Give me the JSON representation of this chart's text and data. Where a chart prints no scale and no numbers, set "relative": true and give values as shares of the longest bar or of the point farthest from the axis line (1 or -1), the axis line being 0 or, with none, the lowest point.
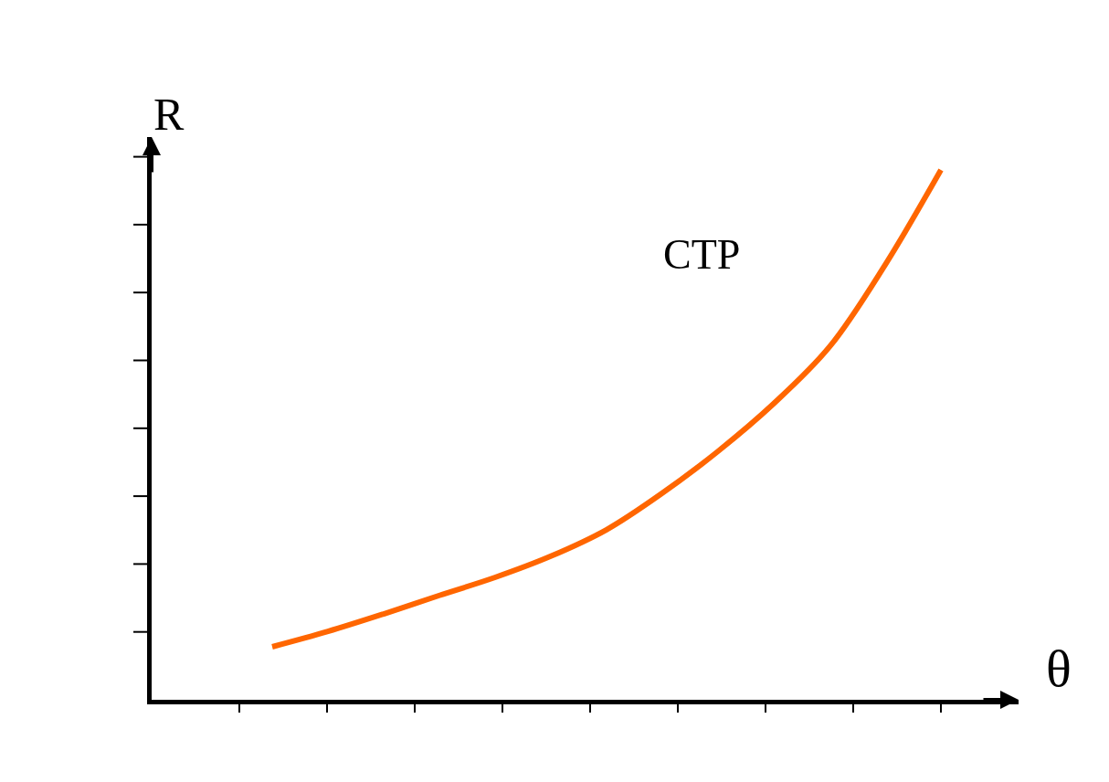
{
  "chart_data": {
    "type": "line",
    "relative": true,
    "xlabel": "θ",
    "ylabel": "R",
    "categories": [
      null,
      null,
      null,
      null,
      null,
      null,
      null,
      null,
      null,
      null,
      null,
      null,
      null
    ],
    "series": [
      {
        "name": "CTP",
        "color": "#ff6600",
        "values": [
          0.1,
          0.129,
          0.162,
          0.197,
          0.231,
          0.271,
          0.321,
          0.39,
          0.469,
          0.559,
          0.666,
          0.821,
          1.0
        ]
      }
    ],
    "legend": false,
    "marker": "none",
    "line_style": "solid"
  }
}
